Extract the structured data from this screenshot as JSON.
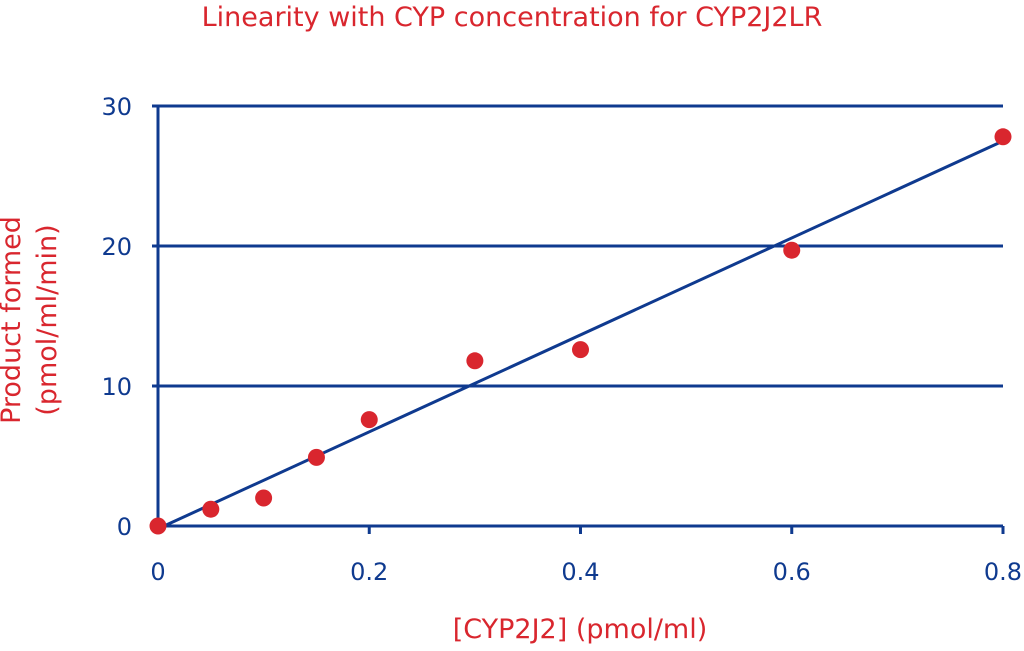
{
  "chart_data": {
    "type": "scatter",
    "title": "Linearity with CYP concentration for CYP2J2LR",
    "xlabel": "[CYP2J2] (pmol/ml)",
    "ylabel": [
      "Product formed",
      "(pmol/ml/min)"
    ],
    "xlim": [
      0,
      0.8
    ],
    "ylim": [
      0,
      30
    ],
    "xticks": [
      0,
      0.2,
      0.4,
      0.6,
      0.8
    ],
    "xtick_labels": [
      "0",
      "0.2",
      "0.4",
      "0.6",
      "0.8"
    ],
    "yticks": [
      0,
      10,
      20,
      30
    ],
    "ytick_labels": [
      "0",
      "10",
      "20",
      "30"
    ],
    "grid": "horizontal",
    "points": [
      {
        "x": 0,
        "y": 0
      },
      {
        "x": 0.05,
        "y": 1.2
      },
      {
        "x": 0.1,
        "y": 2.0
      },
      {
        "x": 0.15,
        "y": 4.9
      },
      {
        "x": 0.2,
        "y": 7.6
      },
      {
        "x": 0.3,
        "y": 11.8
      },
      {
        "x": 0.4,
        "y": 12.6
      },
      {
        "x": 0.6,
        "y": 19.7
      },
      {
        "x": 0.8,
        "y": 27.8
      }
    ],
    "fit_line": {
      "x": [
        0,
        0.8
      ],
      "y": [
        -0.2,
        27.5
      ]
    },
    "colors": {
      "points": "#d9262e",
      "line": "#0f3a8f",
      "axes": "#0f3a8f",
      "text": "#d9262e"
    }
  }
}
